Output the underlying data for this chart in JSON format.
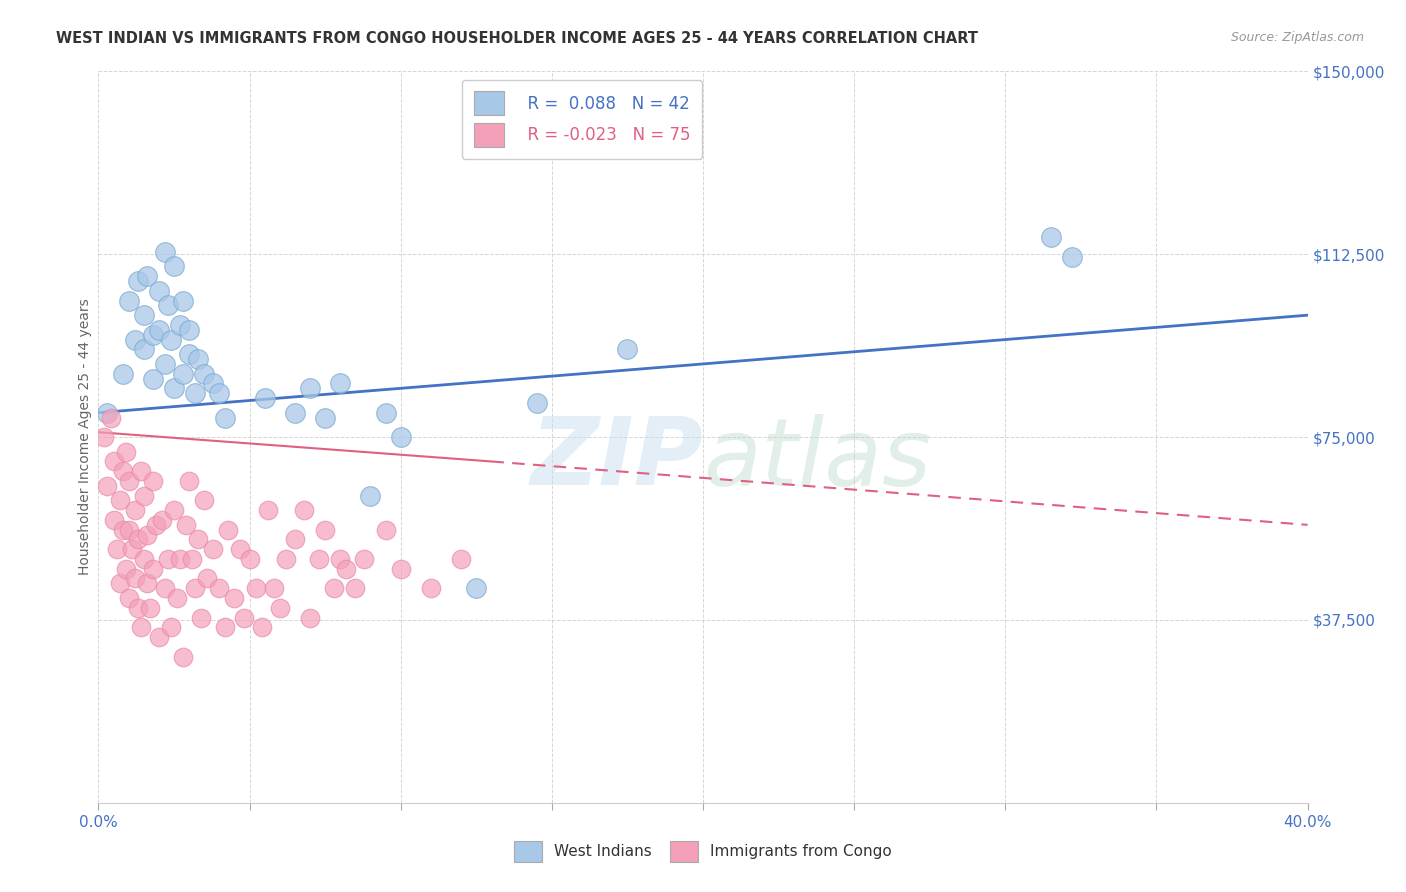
{
  "title": "WEST INDIAN VS IMMIGRANTS FROM CONGO HOUSEHOLDER INCOME AGES 25 - 44 YEARS CORRELATION CHART",
  "source": "Source: ZipAtlas.com",
  "ylabel": "Householder Income Ages 25 - 44 years",
  "xlim": [
    0.0,
    0.4
  ],
  "ylim": [
    0,
    150000
  ],
  "yticks": [
    0,
    37500,
    75000,
    112500,
    150000
  ],
  "ytick_labels": [
    "",
    "$37,500",
    "$75,000",
    "$112,500",
    "$150,000"
  ],
  "xticks": [
    0.0,
    0.05,
    0.1,
    0.15,
    0.2,
    0.25,
    0.3,
    0.35,
    0.4
  ],
  "xtick_labels": [
    "0.0%",
    "",
    "",
    "",
    "",
    "",
    "",
    "",
    "40.0%"
  ],
  "legend_r_blue": "R =  0.088",
  "legend_n_blue": "N = 42",
  "legend_r_pink": "R = -0.023",
  "legend_n_pink": "N = 75",
  "blue_color": "#a8c8e8",
  "pink_color": "#f4a0b8",
  "blue_line_color": "#4472c4",
  "pink_line_color": "#e06080",
  "blue_dot_edge": "#7aaad0",
  "pink_dot_edge": "#e888a8",
  "blue_x": [
    0.003,
    0.008,
    0.01,
    0.012,
    0.013,
    0.015,
    0.015,
    0.016,
    0.018,
    0.018,
    0.02,
    0.02,
    0.022,
    0.022,
    0.023,
    0.024,
    0.025,
    0.025,
    0.027,
    0.028,
    0.028,
    0.03,
    0.03,
    0.032,
    0.033,
    0.035,
    0.038,
    0.04,
    0.042,
    0.055,
    0.065,
    0.07,
    0.075,
    0.08,
    0.09,
    0.095,
    0.1,
    0.125,
    0.145,
    0.175,
    0.315,
    0.322
  ],
  "blue_y": [
    80000,
    88000,
    103000,
    95000,
    107000,
    100000,
    93000,
    108000,
    96000,
    87000,
    105000,
    97000,
    113000,
    90000,
    102000,
    95000,
    110000,
    85000,
    98000,
    88000,
    103000,
    92000,
    97000,
    84000,
    91000,
    88000,
    86000,
    84000,
    79000,
    83000,
    80000,
    85000,
    79000,
    86000,
    63000,
    80000,
    75000,
    44000,
    82000,
    93000,
    116000,
    112000
  ],
  "pink_x": [
    0.002,
    0.003,
    0.004,
    0.005,
    0.005,
    0.006,
    0.007,
    0.007,
    0.008,
    0.008,
    0.009,
    0.009,
    0.01,
    0.01,
    0.01,
    0.011,
    0.012,
    0.012,
    0.013,
    0.013,
    0.014,
    0.014,
    0.015,
    0.015,
    0.016,
    0.016,
    0.017,
    0.018,
    0.018,
    0.019,
    0.02,
    0.021,
    0.022,
    0.023,
    0.024,
    0.025,
    0.026,
    0.027,
    0.028,
    0.029,
    0.03,
    0.031,
    0.032,
    0.033,
    0.034,
    0.035,
    0.036,
    0.038,
    0.04,
    0.042,
    0.043,
    0.045,
    0.047,
    0.048,
    0.05,
    0.052,
    0.054,
    0.056,
    0.058,
    0.06,
    0.062,
    0.065,
    0.068,
    0.07,
    0.073,
    0.075,
    0.078,
    0.08,
    0.082,
    0.085,
    0.088,
    0.095,
    0.1,
    0.11,
    0.12
  ],
  "pink_y": [
    75000,
    65000,
    79000,
    58000,
    70000,
    52000,
    62000,
    45000,
    56000,
    68000,
    48000,
    72000,
    56000,
    42000,
    66000,
    52000,
    46000,
    60000,
    40000,
    54000,
    68000,
    36000,
    50000,
    63000,
    45000,
    55000,
    40000,
    66000,
    48000,
    57000,
    34000,
    58000,
    44000,
    50000,
    36000,
    60000,
    42000,
    50000,
    30000,
    57000,
    66000,
    50000,
    44000,
    54000,
    38000,
    62000,
    46000,
    52000,
    44000,
    36000,
    56000,
    42000,
    52000,
    38000,
    50000,
    44000,
    36000,
    60000,
    44000,
    40000,
    50000,
    54000,
    60000,
    38000,
    50000,
    56000,
    44000,
    50000,
    48000,
    44000,
    50000,
    56000,
    48000,
    44000,
    50000
  ],
  "blue_line_x0": 0.0,
  "blue_line_y0": 80000,
  "blue_line_x1": 0.4,
  "blue_line_y1": 100000,
  "pink_line_solid_x0": 0.0,
  "pink_line_solid_y0": 76000,
  "pink_line_solid_x1": 0.13,
  "pink_line_solid_y1": 70000,
  "pink_line_dash_x0": 0.13,
  "pink_line_dash_y0": 70000,
  "pink_line_dash_x1": 0.4,
  "pink_line_dash_y1": 57000
}
